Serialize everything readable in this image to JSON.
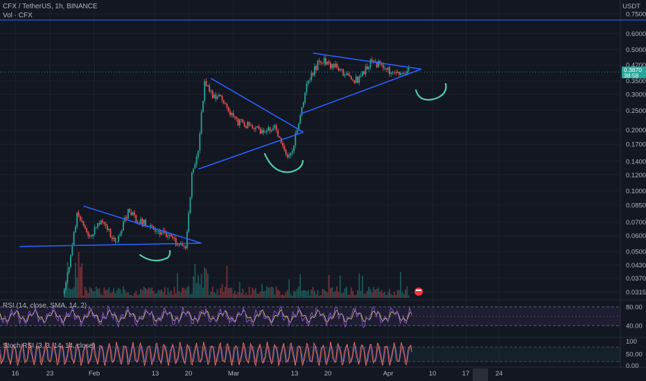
{
  "header": {
    "symbol_line": "CFX / TetherUS, 1h, BINANCE",
    "vol_line": "Vol · CFX"
  },
  "axis": {
    "currency": "USDT"
  },
  "price_badge": {
    "price": "0.3870",
    "countdown": "38:58",
    "color": "#26a69a"
  },
  "rsi": {
    "label": "RSI (14, close, SMA, 14, 2)",
    "ticks": [
      "80.00",
      "40.00"
    ],
    "line_color": "#7e57c2"
  },
  "stoch": {
    "label": "Stoch RSI (3, 3, 14, 14, close)",
    "ticks": [
      "100",
      "50.00",
      "0.00"
    ],
    "k_color": "#ef6c5a"
  },
  "chart_data": {
    "type": "candlestick",
    "yscale": "log",
    "ylim": [
      0.0295,
      0.8
    ],
    "price_ticks": [
      0.75,
      0.6,
      0.5,
      0.42,
      0.35,
      0.3,
      0.25,
      0.2,
      0.17,
      0.14,
      0.12,
      0.1,
      0.085,
      0.07,
      0.06,
      0.05,
      0.043,
      0.037,
      0.0315
    ],
    "price_tick_labels": [
      "0.7500",
      "0.6000",
      "0.5000",
      "0.4200",
      "0.3500",
      "0.3000",
      "0.2500",
      "0.2000",
      "0.1700",
      "0.1400",
      "0.1200",
      "0.1000",
      "0.0850",
      "0.0700",
      "0.0600",
      "0.0500",
      "0.0430",
      "0.0370",
      "0.0315"
    ],
    "date_ticks": [
      "16",
      "23",
      "Feb",
      "13",
      "20",
      "Mar",
      "13",
      "20",
      "Apr",
      "10",
      "17",
      "24"
    ],
    "highlighted_date_tick": "",
    "horizontal_level": 0.7,
    "last_price": 0.387,
    "path_points": [
      {
        "d": 0,
        "p": 0.031
      },
      {
        "d": 9,
        "p": 0.031
      },
      {
        "d": 11,
        "p": 0.075
      },
      {
        "d": 13,
        "p": 0.06
      },
      {
        "d": 15,
        "p": 0.072
      },
      {
        "d": 17,
        "p": 0.055
      },
      {
        "d": 19,
        "p": 0.078
      },
      {
        "d": 21,
        "p": 0.07
      },
      {
        "d": 23,
        "p": 0.066
      },
      {
        "d": 25,
        "p": 0.06
      },
      {
        "d": 27,
        "p": 0.054
      },
      {
        "d": 28,
        "p": 0.052
      },
      {
        "d": 29,
        "p": 0.12
      },
      {
        "d": 30,
        "p": 0.16
      },
      {
        "d": 31,
        "p": 0.35
      },
      {
        "d": 32,
        "p": 0.3
      },
      {
        "d": 34,
        "p": 0.28
      },
      {
        "d": 36,
        "p": 0.22
      },
      {
        "d": 38,
        "p": 0.21
      },
      {
        "d": 40,
        "p": 0.2
      },
      {
        "d": 42,
        "p": 0.21
      },
      {
        "d": 43,
        "p": 0.17
      },
      {
        "d": 44,
        "p": 0.145
      },
      {
        "d": 45,
        "p": 0.17
      },
      {
        "d": 46,
        "p": 0.24
      },
      {
        "d": 47,
        "p": 0.33
      },
      {
        "d": 48,
        "p": 0.38
      },
      {
        "d": 49,
        "p": 0.45
      },
      {
        "d": 50,
        "p": 0.43
      },
      {
        "d": 52,
        "p": 0.4
      },
      {
        "d": 54,
        "p": 0.36
      },
      {
        "d": 55,
        "p": 0.35
      },
      {
        "d": 57,
        "p": 0.44
      },
      {
        "d": 59,
        "p": 0.41
      },
      {
        "d": 61,
        "p": 0.37
      },
      {
        "d": 63,
        "p": 0.39
      }
    ],
    "trendlines": [
      {
        "name": "triangle-1-upper",
        "from": {
          "d": 12,
          "p": 0.084
        },
        "to": {
          "d": 30.5,
          "p": 0.055
        }
      },
      {
        "name": "triangle-1-lower",
        "from": {
          "d": 2,
          "p": 0.053
        },
        "to": {
          "d": 30.5,
          "p": 0.055
        }
      },
      {
        "name": "triangle-2-upper",
        "from": {
          "d": 32,
          "p": 0.36
        },
        "to": {
          "d": 46.5,
          "p": 0.195
        }
      },
      {
        "name": "triangle-2-lower",
        "from": {
          "d": 30,
          "p": 0.128
        },
        "to": {
          "d": 46.5,
          "p": 0.195
        }
      },
      {
        "name": "triangle-3-upper",
        "from": {
          "d": 48,
          "p": 0.48
        },
        "to": {
          "d": 65,
          "p": 0.4
        }
      },
      {
        "name": "triangle-3-lower",
        "from": {
          "d": 46,
          "p": 0.24
        },
        "to": {
          "d": 65,
          "p": 0.4
        }
      }
    ],
    "line_color": "#2962ff",
    "up_color": "#26a69a",
    "down_color": "#ef5350",
    "annotation_color": "#4dd0a8",
    "grid": true
  }
}
